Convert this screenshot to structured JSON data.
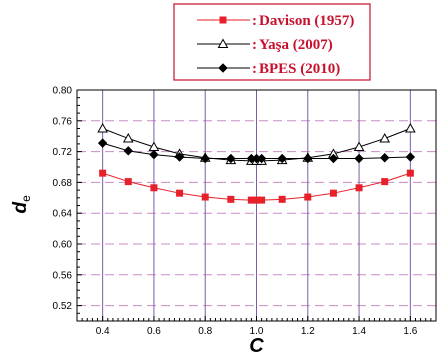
{
  "chart_data": {
    "type": "line",
    "title": "",
    "xlabel": "C",
    "ylabel": "d",
    "ylabel_subscript": "e",
    "xlim": [
      0.3,
      1.7
    ],
    "ylim": [
      0.5,
      0.8
    ],
    "x_ticks": [
      "0.4",
      "0.6",
      "0.8",
      "1.0",
      "1.2",
      "1.4",
      "1.6"
    ],
    "y_ticks": [
      "0.52",
      "0.56",
      "0.60",
      "0.64",
      "0.68",
      "0.72",
      "0.76",
      "0.80"
    ],
    "grid": {
      "vertical_at": [
        0.4,
        0.6,
        0.8,
        1.0,
        1.2,
        1.4,
        1.6
      ],
      "vertical_color": "#7b5ea7",
      "horizontal_dashed_at": [
        0.52,
        0.56,
        0.6,
        0.64,
        0.68,
        0.72,
        0.76
      ],
      "horizontal_color": "#c88cc8"
    },
    "legend": {
      "placement": "top-center",
      "border_color": "#c8102e",
      "text_color": "#c8102e"
    },
    "series": [
      {
        "name": "Davison (1957)",
        "color": "#e8202a",
        "marker": "filled-square",
        "x": [
          0.4,
          0.5,
          0.6,
          0.7,
          0.8,
          0.9,
          0.98,
          1.0,
          1.02,
          1.1,
          1.2,
          1.3,
          1.4,
          1.5,
          1.6
        ],
        "y": [
          0.692,
          0.681,
          0.673,
          0.666,
          0.661,
          0.658,
          0.657,
          0.657,
          0.657,
          0.658,
          0.661,
          0.666,
          0.673,
          0.681,
          0.692
        ]
      },
      {
        "name": "Yaşa (2007)",
        "color": "#000000",
        "marker": "open-triangle",
        "x": [
          0.4,
          0.5,
          0.6,
          0.7,
          0.8,
          0.9,
          0.98,
          1.0,
          1.02,
          1.1,
          1.2,
          1.3,
          1.4,
          1.5,
          1.6
        ],
        "y": [
          0.75,
          0.737,
          0.726,
          0.717,
          0.712,
          0.709,
          0.708,
          0.708,
          0.708,
          0.709,
          0.712,
          0.717,
          0.726,
          0.737,
          0.75
        ]
      },
      {
        "name": "BPES (2010)",
        "color": "#000000",
        "marker": "filled-diamond",
        "x": [
          0.4,
          0.5,
          0.6,
          0.7,
          0.8,
          0.9,
          0.98,
          1.0,
          1.02,
          1.1,
          1.2,
          1.3,
          1.4,
          1.5,
          1.6
        ],
        "y": [
          0.731,
          0.721,
          0.716,
          0.713,
          0.711,
          0.711,
          0.711,
          0.711,
          0.711,
          0.711,
          0.711,
          0.711,
          0.711,
          0.712,
          0.713
        ]
      }
    ]
  }
}
